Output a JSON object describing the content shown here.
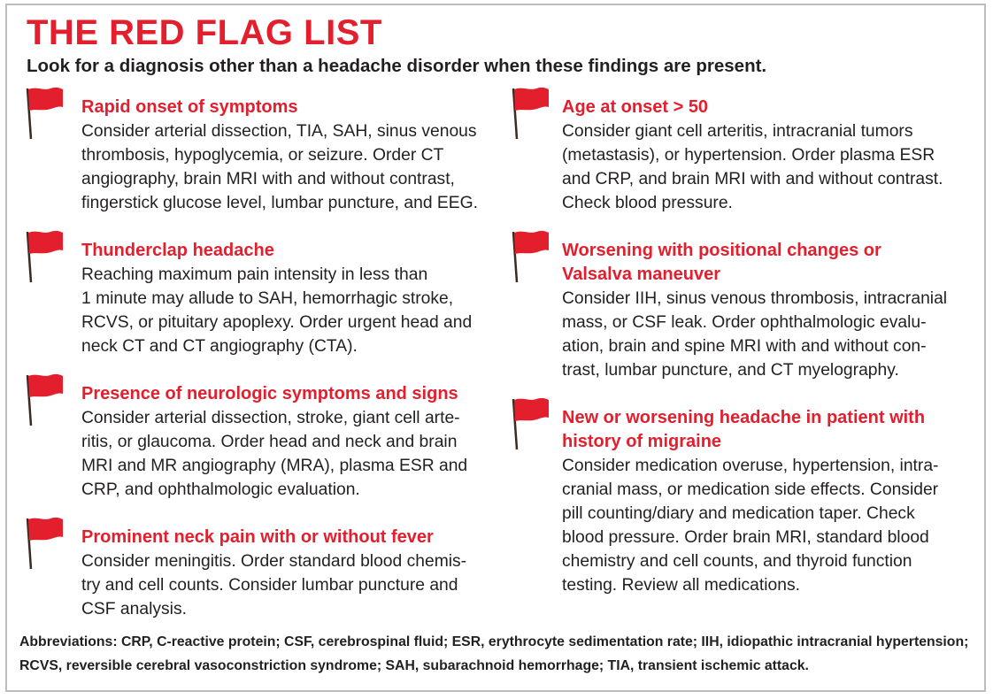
{
  "title": "THE RED FLAG LIST",
  "subtitle": "Look for a diagnosis other than a headache disorder when these findings are present.",
  "colors": {
    "accent": "#e31e2d",
    "text": "#231f20",
    "border": "#bdbdbd"
  },
  "icon": "red-flag-icon",
  "left_items": [
    {
      "heading": "Rapid onset of symptoms",
      "body": "Consider arterial dissection, TIA, SAH, sinus venous\nthrombosis, hypoglycemia, or seizure. Order CT\nangiography, brain MRI with and without contrast,\nfingerstick glucose level, lumbar puncture, and EEG."
    },
    {
      "heading": "Thunderclap headache",
      "body": "Reaching maximum pain intensity in less than\n1 minute may allude to SAH, hemorrhagic stroke,\nRCVS, or pituitary apoplexy. Order urgent head and\nneck CT and CT angiography (CTA)."
    },
    {
      "heading": "Presence of neurologic symptoms and signs",
      "body": "Consider arterial dissection, stroke, giant cell arte-\nritis, or glaucoma. Order head and neck and  brain\nMRI and MR angiography (MRA), plasma ESR and\nCRP, and ophthalmologic evaluation."
    },
    {
      "heading": "Prominent neck pain with or without fever",
      "body": "Consider meningitis. Order standard blood chemis-\ntry and cell counts. Consider lumbar puncture and\nCSF analysis."
    }
  ],
  "right_items": [
    {
      "heading": "Age at onset > 50",
      "body": "Consider giant cell arteritis, intracranial tumors\n(metastasis), or hypertension. Order plasma ESR\nand CRP, and brain MRI with and without contrast.\nCheck blood pressure."
    },
    {
      "heading": "Worsening with positional changes or\nValsalva maneuver",
      "body": "Consider IIH, sinus venous thrombosis, intracranial\nmass, or CSF leak. Order ophthalmologic evalu-\nation, brain and spine MRI with and without con-\ntrast, lumbar puncture, and CT myelography."
    },
    {
      "heading": "New or worsening headache in patient with\nhistory of migraine",
      "body": "Consider medication overuse, hypertension, intra-\ncranial mass, or medication side effects. Consider\npill counting/diary and medication taper. Check\nblood pressure. Order brain MRI, standard blood\nchemistry and cell counts, and thyroid function\ntesting. Review all medications."
    }
  ],
  "abbreviations": "Abbreviations: CRP, C-reactive protein; CSF, cerebrospinal fluid; ESR, erythrocyte sedimentation rate; IIH, idiopathic intracranial hypertension; RCVS, reversible cerebral vasoconstriction syndrome; SAH, subarachnoid hemorrhage; TIA, transient ischemic attack."
}
